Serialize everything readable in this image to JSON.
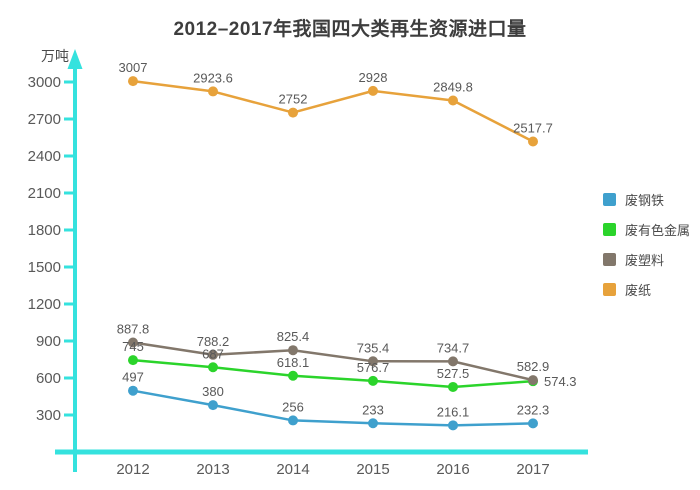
{
  "chart_data": {
    "type": "line",
    "title": "2012–2017年我国四大类再生资源进口量",
    "ylabel": "万吨",
    "xlabel": "",
    "categories": [
      "2012",
      "2013",
      "2014",
      "2015",
      "2016",
      "2017"
    ],
    "series": [
      {
        "name": "废钢铁",
        "color": "#3FA0CD",
        "values": [
          497,
          380,
          256,
          233,
          216.1,
          232.3
        ]
      },
      {
        "name": "废有色金属",
        "color": "#2BD42B",
        "values": [
          745,
          687,
          618.1,
          576.7,
          527.5,
          574.3
        ]
      },
      {
        "name": "废塑料",
        "color": "#82776B",
        "values": [
          887.8,
          788.2,
          825.4,
          735.4,
          734.7,
          582.9
        ]
      },
      {
        "name": "废纸",
        "color": "#E7A23B",
        "values": [
          3007,
          2923.6,
          2752,
          2928,
          2849.8,
          2517.7
        ]
      }
    ],
    "yticks": [
      300,
      600,
      900,
      1200,
      1500,
      1800,
      2100,
      2400,
      2700,
      3000
    ],
    "ylim": [
      0,
      3100
    ],
    "grid": false,
    "legend_position": "right",
    "axis_color": "#35E2DE",
    "text_color": "#595959",
    "title_color": "#3d3d3d",
    "point_label_font_size": 13,
    "label_overrides": [
      {
        "series": 1,
        "point": 5,
        "position": "right"
      }
    ]
  }
}
